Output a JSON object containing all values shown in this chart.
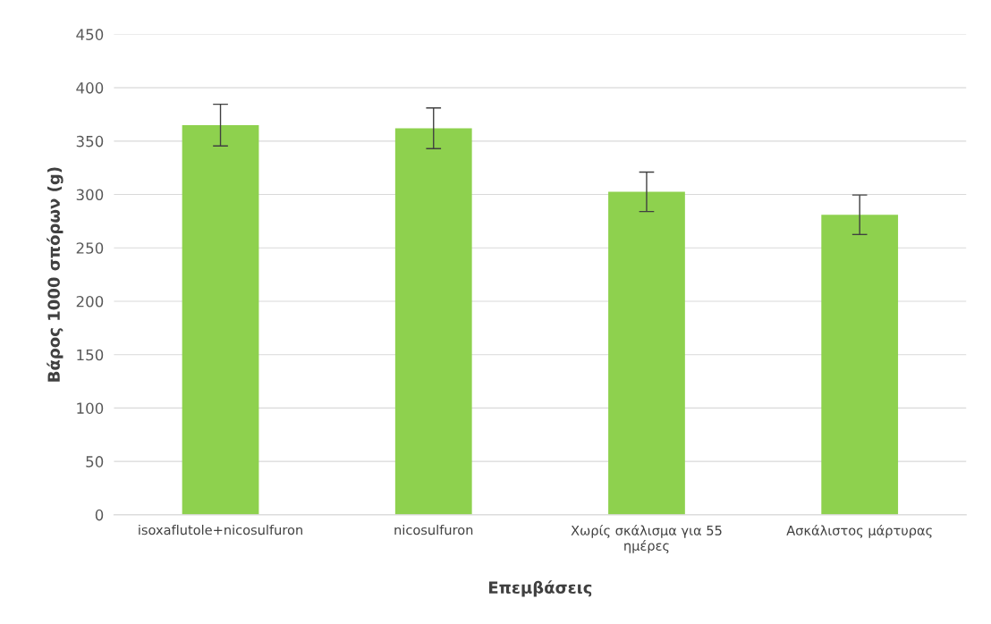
{
  "chart_data": {
    "type": "bar",
    "xlabel": "Επεμβάσεις",
    "ylabel": "Βάρος 1000 σπόρων (g)",
    "categories": [
      "isoxaflutole+nicosulfuron",
      "nicosulfuron",
      "Χωρίς σκάλισμα για 55\nημέρες",
      "Ασκάλιστος μάρτυρας"
    ],
    "values": [
      365,
      362,
      302.5,
      281
    ],
    "errors": [
      19.5,
      19,
      18.5,
      18.5
    ],
    "color": "#8ed14e",
    "ylim": [
      0,
      450
    ],
    "yticks": [
      0,
      50,
      100,
      150,
      200,
      250,
      300,
      350,
      400,
      450
    ],
    "grid": "y"
  }
}
